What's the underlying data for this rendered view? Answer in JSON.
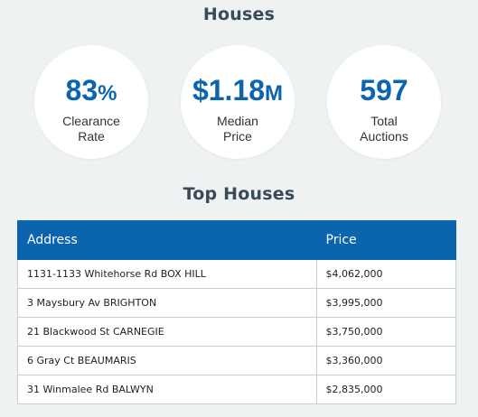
{
  "houses_title": "Houses",
  "stats": {
    "clearance": {
      "value": "83",
      "unit": "%",
      "label_line1": "Clearance",
      "label_line2": "Rate"
    },
    "median": {
      "value": "$1.18",
      "unit": "M",
      "label_line1": "Median",
      "label_line2": "Price"
    },
    "total": {
      "value": "597",
      "unit": "",
      "label_line1": "Total",
      "label_line2": "Auctions"
    }
  },
  "top_houses_title": "Top Houses",
  "table": {
    "headers": {
      "address": "Address",
      "price": "Price"
    },
    "rows": [
      {
        "address": "1131-1133 Whitehorse Rd BOX HILL",
        "price": "$4,062,000"
      },
      {
        "address": "3 Maysbury Av BRIGHTON",
        "price": "$3,995,000"
      },
      {
        "address": "21 Blackwood St CARNEGIE",
        "price": "$3,750,000"
      },
      {
        "address": "6 Gray Ct BEAUMARIS",
        "price": "$3,360,000"
      },
      {
        "address": "31 Winmalee Rd BALWYN",
        "price": "$2,835,000"
      }
    ]
  },
  "colors": {
    "accent": "#0a64ae",
    "background": "#eef2f3"
  }
}
